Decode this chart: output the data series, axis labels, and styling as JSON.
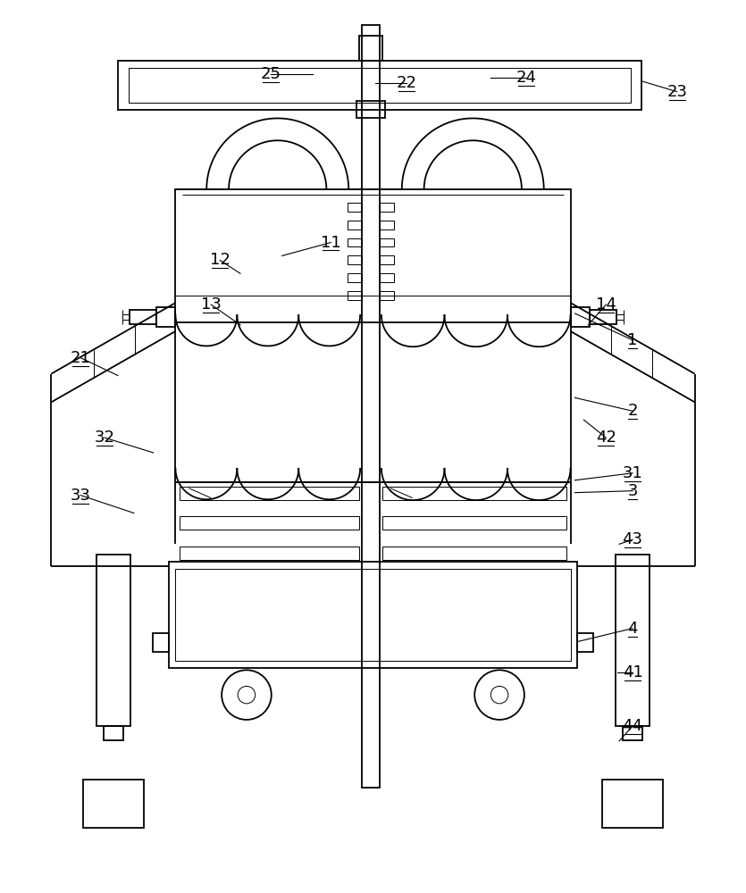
{
  "line_color": "#000000",
  "bg_color": "#ffffff",
  "lw": 1.3,
  "lw_thin": 0.7,
  "fig_width": 8.35,
  "fig_height": 10.0
}
